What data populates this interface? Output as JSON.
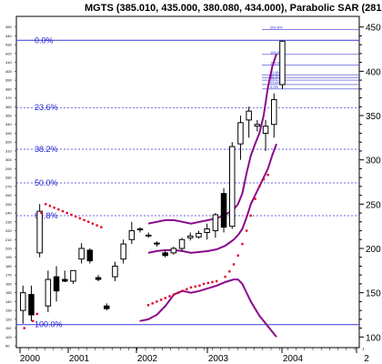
{
  "chart_data": {
    "type": "candlestick",
    "title": "MGTS (385.010, 435.000, 380.080, 434.000), Parabolic SAR (281.203)",
    "x_labels": [
      "2000",
      "2001",
      "2002",
      "2003",
      "2004",
      "2"
    ],
    "y_ticks_major": [
      450,
      400,
      350,
      300,
      250,
      200,
      150,
      100
    ],
    "y_ticks_small": [
      440,
      430,
      420,
      410,
      390,
      380,
      370,
      360,
      340,
      330,
      320,
      310,
      290,
      280,
      270,
      260,
      240,
      230,
      220,
      210,
      190,
      180,
      170,
      160,
      140,
      130,
      120,
      110
    ],
    "y_small_labels": [
      "450",
      "440",
      "430",
      "420",
      "410",
      "400",
      "390",
      "380",
      "370",
      "360",
      "350",
      "340",
      "330",
      "320",
      "310",
      "300",
      "290",
      "280",
      "270",
      "260",
      "250",
      "240",
      "230",
      "220",
      "210",
      "200",
      "190",
      "180",
      "170",
      "160",
      "150",
      "140",
      "130",
      "120",
      "110",
      "100",
      "90"
    ],
    "ylim": [
      88,
      462
    ],
    "fib_levels": [
      {
        "label": "0.0%",
        "value": 435
      },
      {
        "label": "23.6%",
        "value": 359
      },
      {
        "label": "38.2%",
        "value": 312
      },
      {
        "label": "50.0%",
        "value": 274
      },
      {
        "label": "61.8%",
        "value": 237
      },
      {
        "label": "100.0%",
        "value": 114
      }
    ],
    "fib_small_levels": [
      {
        "label": "261.8%",
        "value": 447
      },
      {
        "label": "161.8%",
        "value": 419
      },
      {
        "label": "100.0%",
        "value": 407
      },
      {
        "label": "61.8%",
        "value": 396
      },
      {
        "label": "50.0%",
        "value": 393
      },
      {
        "label": "38.2%",
        "value": 390
      },
      {
        "label": "23.6%",
        "value": 385
      },
      {
        "label": "0.0%",
        "value": 380
      }
    ],
    "candles": [
      {
        "o": 130,
        "h": 158,
        "l": 115,
        "c": 150
      },
      {
        "o": 148,
        "h": 158,
        "l": 118,
        "c": 125
      },
      {
        "o": 195,
        "h": 250,
        "l": 190,
        "c": 242
      },
      {
        "o": 135,
        "h": 175,
        "l": 128,
        "c": 165
      },
      {
        "o": 168,
        "h": 180,
        "l": 140,
        "c": 152
      },
      {
        "o": 165,
        "h": 175,
        "l": 162,
        "c": 163
      },
      {
        "o": 163,
        "h": 172,
        "l": 160,
        "c": 175
      },
      {
        "o": 188,
        "h": 206,
        "l": 183,
        "c": 200
      },
      {
        "o": 198,
        "h": 200,
        "l": 183,
        "c": 186
      },
      {
        "o": 167,
        "h": 170,
        "l": 163,
        "c": 165
      },
      {
        "o": 135,
        "h": 138,
        "l": 130,
        "c": 132
      },
      {
        "o": 168,
        "h": 185,
        "l": 163,
        "c": 180
      },
      {
        "o": 188,
        "h": 210,
        "l": 183,
        "c": 205
      },
      {
        "o": 210,
        "h": 230,
        "l": 205,
        "c": 220
      },
      {
        "o": 221,
        "h": 224,
        "l": 218,
        "c": 222
      },
      {
        "o": 215,
        "h": 218,
        "l": 212,
        "c": 214
      },
      {
        "o": 205,
        "h": 208,
        "l": 202,
        "c": 206
      },
      {
        "o": 195,
        "h": 198,
        "l": 190,
        "c": 192
      },
      {
        "o": 195,
        "h": 202,
        "l": 193,
        "c": 200
      },
      {
        "o": 200,
        "h": 212,
        "l": 197,
        "c": 210
      },
      {
        "o": 212,
        "h": 218,
        "l": 209,
        "c": 214
      },
      {
        "o": 213,
        "h": 220,
        "l": 211,
        "c": 217
      },
      {
        "o": 218,
        "h": 228,
        "l": 210,
        "c": 222
      },
      {
        "o": 220,
        "h": 240,
        "l": 212,
        "c": 238
      },
      {
        "o": 262,
        "h": 268,
        "l": 218,
        "c": 224
      },
      {
        "o": 225,
        "h": 320,
        "l": 222,
        "c": 315
      },
      {
        "o": 318,
        "h": 350,
        "l": 300,
        "c": 342
      },
      {
        "o": 345,
        "h": 360,
        "l": 325,
        "c": 355
      },
      {
        "o": 338,
        "h": 345,
        "l": 332,
        "c": 340
      },
      {
        "o": 330,
        "h": 345,
        "l": 310,
        "c": 338
      },
      {
        "o": 340,
        "h": 375,
        "l": 325,
        "c": 368
      },
      {
        "o": 385,
        "h": 435,
        "l": 380,
        "c": 434
      }
    ],
    "sar_points": [
      [
        5,
        110
      ],
      [
        7,
        118
      ],
      [
        8,
        126
      ],
      [
        9,
        240
      ],
      [
        10,
        250
      ],
      [
        11,
        248
      ],
      [
        12,
        246
      ],
      [
        13,
        244
      ],
      [
        14,
        242
      ],
      [
        15,
        240
      ],
      [
        16,
        238
      ],
      [
        17,
        236
      ],
      [
        18,
        234
      ],
      [
        19,
        232
      ],
      [
        20,
        230
      ],
      [
        21,
        228
      ],
      [
        22,
        226
      ],
      [
        23,
        224
      ],
      [
        34,
        136
      ],
      [
        35,
        138
      ],
      [
        36,
        140
      ],
      [
        37,
        142
      ],
      [
        38,
        144
      ],
      [
        39,
        146
      ],
      [
        40,
        148
      ],
      [
        41,
        150
      ],
      [
        42,
        152
      ],
      [
        43,
        154
      ],
      [
        44,
        156
      ],
      [
        45,
        157
      ],
      [
        46,
        158
      ],
      [
        47,
        160
      ],
      [
        48,
        161
      ],
      [
        49,
        162
      ],
      [
        50,
        163
      ],
      [
        52,
        168
      ],
      [
        53,
        174
      ],
      [
        54,
        182
      ],
      [
        55,
        192
      ],
      [
        56,
        205
      ],
      [
        57,
        220
      ],
      [
        58,
        237
      ],
      [
        59,
        256
      ],
      [
        60,
        270
      ],
      [
        61,
        278
      ],
      [
        62,
        283
      ]
    ],
    "bands": {
      "upper": [
        [
          34,
          228
        ],
        [
          36,
          230
        ],
        [
          38,
          232
        ],
        [
          40,
          232
        ],
        [
          42,
          230
        ],
        [
          44,
          228
        ],
        [
          46,
          230
        ],
        [
          48,
          232
        ],
        [
          50,
          234
        ],
        [
          52,
          238
        ],
        [
          54,
          244
        ],
        [
          55,
          250
        ],
        [
          56,
          262
        ],
        [
          57,
          285
        ],
        [
          58,
          305
        ],
        [
          59,
          318
        ],
        [
          60,
          330
        ],
        [
          61,
          350
        ],
        [
          62,
          382
        ],
        [
          63,
          405
        ],
        [
          64,
          420
        ]
      ],
      "mid": [
        [
          34,
          195
        ],
        [
          36,
          197
        ],
        [
          38,
          198
        ],
        [
          40,
          198
        ],
        [
          42,
          197
        ],
        [
          44,
          195
        ],
        [
          46,
          196
        ],
        [
          48,
          197
        ],
        [
          50,
          199
        ],
        [
          52,
          203
        ],
        [
          54,
          210
        ],
        [
          55,
          215
        ],
        [
          56,
          222
        ],
        [
          57,
          235
        ],
        [
          58,
          250
        ],
        [
          59,
          260
        ],
        [
          60,
          270
        ],
        [
          61,
          280
        ],
        [
          62,
          290
        ],
        [
          63,
          305
        ],
        [
          64,
          318
        ]
      ],
      "lower": [
        [
          32,
          118
        ],
        [
          34,
          120
        ],
        [
          36,
          125
        ],
        [
          38,
          135
        ],
        [
          40,
          148
        ],
        [
          42,
          152
        ],
        [
          44,
          150
        ],
        [
          46,
          152
        ],
        [
          48,
          155
        ],
        [
          50,
          158
        ],
        [
          52,
          162
        ],
        [
          54,
          165
        ],
        [
          55,
          165
        ],
        [
          56,
          160
        ],
        [
          57,
          150
        ],
        [
          58,
          140
        ],
        [
          59,
          132
        ],
        [
          60,
          124
        ],
        [
          61,
          118
        ],
        [
          62,
          112
        ],
        [
          63,
          106
        ],
        [
          64,
          100
        ]
      ]
    },
    "colors": {
      "up": "#ffffff",
      "down": "#000000",
      "fib": "#3a3ad8",
      "sar": "#e0002a",
      "band": "#8a0a8a",
      "grid": "#7f7fff"
    }
  }
}
